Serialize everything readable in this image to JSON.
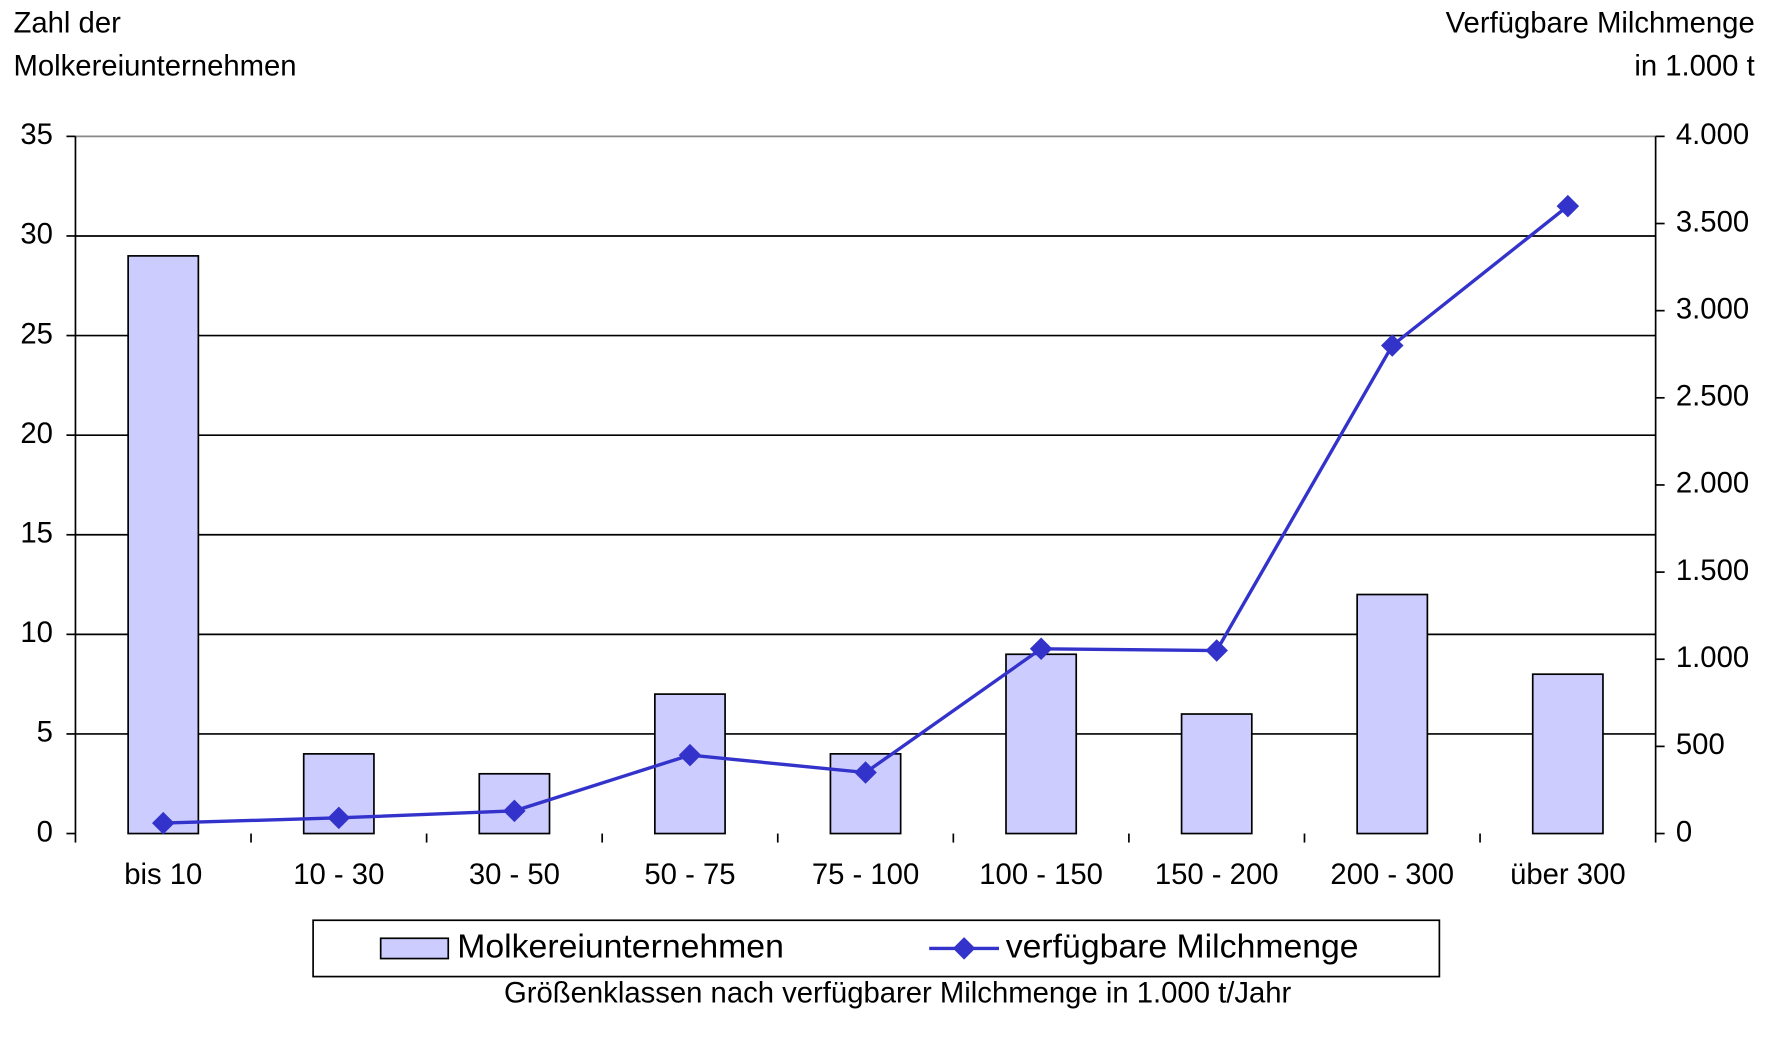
{
  "chart_data": {
    "type": "bar",
    "y_label": [
      "Zahl der",
      "Molkereiunternehmen"
    ],
    "y2_label": [
      "Verfügbare Milchmenge",
      "in 1.000 t"
    ],
    "x_label": "Größenklassen nach verfügbarer Milchmenge in 1.000 t/Jahr",
    "categories": [
      "bis 10",
      "10 - 30",
      "30 - 50",
      "50 - 75",
      "75 - 100",
      "100 - 150",
      "150 - 200",
      "200 - 300",
      "über 300"
    ],
    "series": [
      {
        "name": "Molkereiunternehmen",
        "type": "bar",
        "color": "#ccccff",
        "values": [
          29,
          4,
          3,
          7,
          4,
          9,
          6,
          12,
          8
        ]
      },
      {
        "name": "verfügbare Milchmenge",
        "type": "line",
        "axis": "y2",
        "color": "#3333cc",
        "values": [
          60,
          90,
          130,
          450,
          350,
          1060,
          1050,
          2800,
          3600
        ]
      }
    ],
    "ylim": [
      0,
      35
    ],
    "yticks": [
      0,
      5,
      10,
      15,
      20,
      25,
      30,
      35
    ],
    "y2lim": [
      0,
      4000
    ],
    "y2ticks": [
      0,
      500,
      {
        "value": 1000,
        "label": "1.000"
      },
      {
        "value": 1500,
        "label": "1.500"
      },
      {
        "value": 2000,
        "label": "2.000"
      },
      {
        "value": 2500,
        "label": "2.500"
      },
      {
        "value": 3000,
        "label": "3.000"
      },
      {
        "value": 3500,
        "label": "3.500"
      },
      {
        "value": 4000,
        "label": "4.000"
      }
    ],
    "grid": true,
    "legend": "bottom"
  }
}
